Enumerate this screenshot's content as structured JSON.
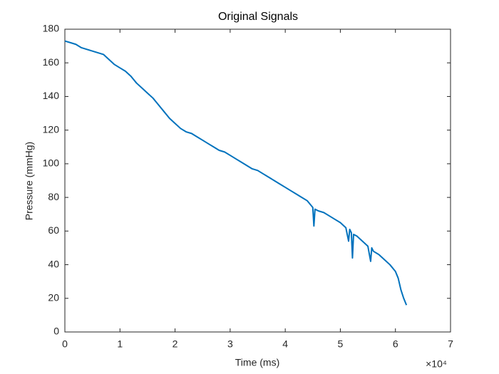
{
  "chart_data": {
    "type": "line",
    "title": "Original Signals",
    "x_label": "Time (ms)",
    "y_label": "Pressure (mmHg)",
    "x_exponent": "×10⁴",
    "x": [
      0,
      1000,
      2000,
      3000,
      4000,
      5000,
      6000,
      7000,
      8000,
      9000,
      10000,
      11000,
      12000,
      13000,
      14000,
      15000,
      16000,
      17000,
      18000,
      19000,
      20000,
      21000,
      22000,
      23000,
      24000,
      25000,
      26000,
      27000,
      28000,
      29000,
      30000,
      31000,
      32000,
      33000,
      34000,
      35000,
      36000,
      37000,
      38000,
      39000,
      40000,
      41000,
      42000,
      43000,
      44000,
      45000,
      45200,
      45400,
      46000,
      47000,
      48000,
      49000,
      50000,
      51000,
      51500,
      51700,
      52000,
      52200,
      52400,
      53000,
      54000,
      55000,
      55500,
      55700,
      56000,
      57000,
      58000,
      59000,
      60000,
      60500,
      61000,
      61500,
      62000
    ],
    "series": [
      {
        "name": "Pressure",
        "color": "#0072bd",
        "values": [
          173,
          172,
          171,
          169,
          168,
          167,
          166,
          165,
          162,
          159,
          157,
          155,
          152,
          148,
          145,
          142,
          139,
          135,
          131,
          127,
          124,
          121,
          119,
          118,
          116,
          114,
          112,
          110,
          108,
          107,
          105,
          103,
          101,
          99,
          97,
          96,
          94,
          92,
          90,
          88,
          86,
          84,
          82,
          80,
          78,
          74,
          63,
          73,
          72,
          71,
          69,
          67,
          65,
          62,
          54,
          61,
          59,
          44,
          58,
          57,
          54,
          51,
          42,
          50,
          48,
          46,
          43,
          40,
          36,
          32,
          25,
          20,
          16
        ]
      }
    ],
    "xlim": [
      0,
      70000
    ],
    "xticks": [
      {
        "value": 0,
        "label": "0"
      },
      {
        "value": 10000,
        "label": "1"
      },
      {
        "value": 20000,
        "label": "2"
      },
      {
        "value": 30000,
        "label": "3"
      },
      {
        "value": 40000,
        "label": "4"
      },
      {
        "value": 50000,
        "label": "5"
      },
      {
        "value": 60000,
        "label": "6"
      },
      {
        "value": 70000,
        "label": "7"
      }
    ],
    "ylim": [
      0,
      180
    ],
    "yticks": [
      0,
      20,
      40,
      60,
      80,
      100,
      120,
      140,
      160,
      180
    ],
    "grid": false
  }
}
